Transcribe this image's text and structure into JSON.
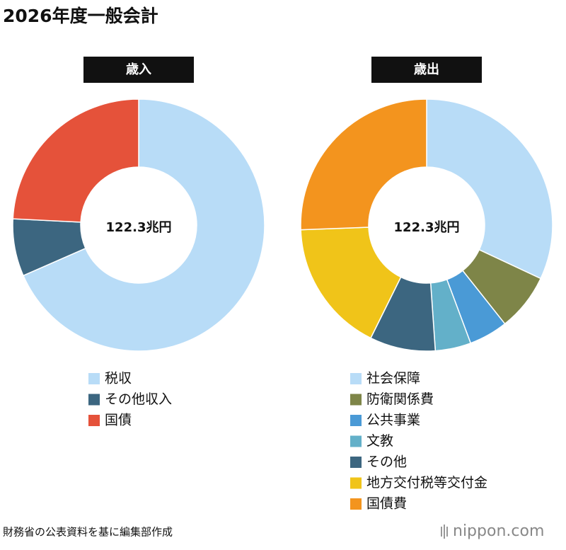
{
  "title": "2026年度一般会計",
  "chart_data": [
    {
      "type": "donut",
      "title": "歳入",
      "center_label": "122.3兆円",
      "categories": [
        "税収",
        "その他収入",
        "国債"
      ],
      "values": [
        83.7,
        9.0,
        29.6
      ],
      "colors": [
        "#b8dcf7",
        "#3c6680",
        "#e5523a"
      ]
    },
    {
      "type": "donut",
      "title": "歳出",
      "center_label": "122.3兆円",
      "categories": [
        "社会保障",
        "防衛関係費",
        "公共事業",
        "文教",
        "その他",
        "地方交付税等交付金",
        "国債費"
      ],
      "values": [
        39.1,
        9.0,
        6.1,
        5.6,
        10.3,
        20.9,
        31.3
      ],
      "colors": [
        "#b8dcf7",
        "#7e8548",
        "#4a9ad6",
        "#63b0c9",
        "#3c6680",
        "#f0c419",
        "#f3941e"
      ]
    }
  ],
  "source": "財務省の公表資料を基に編集部作成",
  "logo": "nippon.com"
}
